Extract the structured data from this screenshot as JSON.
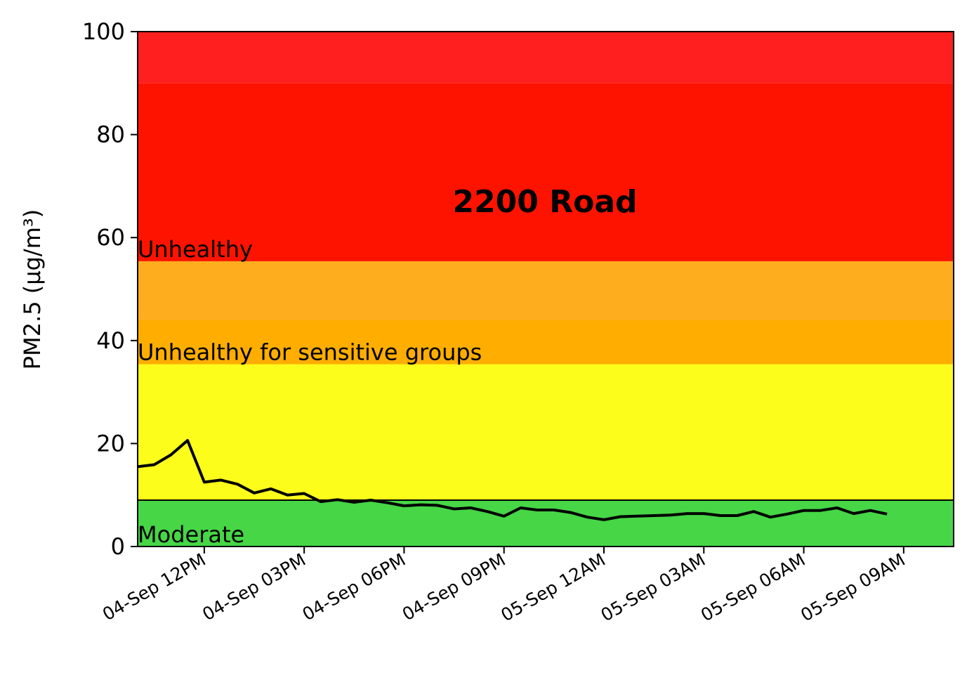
{
  "chart_data": {
    "type": "line",
    "title": "2200 Road",
    "xlabel": "",
    "ylabel": "PM2.5 (µg/m³)",
    "ylim": [
      0,
      100
    ],
    "yticks": [
      0,
      20,
      40,
      60,
      80,
      100
    ],
    "xlim": [
      "2024-09-04T10:00",
      "2024-09-05T10:30"
    ],
    "xticks": [
      {
        "t": "2024-09-04T12:00",
        "label": "04-Sep 12PM"
      },
      {
        "t": "2024-09-04T15:00",
        "label": "04-Sep 03PM"
      },
      {
        "t": "2024-09-04T18:00",
        "label": "04-Sep 06PM"
      },
      {
        "t": "2024-09-04T21:00",
        "label": "04-Sep 09PM"
      },
      {
        "t": "2024-09-05T00:00",
        "label": "05-Sep 12AM"
      },
      {
        "t": "2024-09-05T03:00",
        "label": "05-Sep 03AM"
      },
      {
        "t": "2024-09-05T06:00",
        "label": "05-Sep 06AM"
      },
      {
        "t": "2024-09-05T09:00",
        "label": "05-Sep 09AM"
      }
    ],
    "bands": [
      {
        "from": 0,
        "to": 9,
        "color": "#46d646",
        "label": "Moderate"
      },
      {
        "from": 9,
        "to": 35.4,
        "color": "#fdfd1b",
        "label": ""
      },
      {
        "from": 35.4,
        "to": 44,
        "color": "#ffae00",
        "label": "Unhealthy for sensitive groups"
      },
      {
        "from": 44,
        "to": 55.4,
        "color": "#fdad1d",
        "label": ""
      },
      {
        "from": 55.4,
        "to": 90,
        "color": "#fe1300",
        "label": "Unhealthy"
      },
      {
        "from": 90,
        "to": 100,
        "color": "#ff1f1f",
        "label": ""
      }
    ],
    "series": [
      {
        "color": "#000000",
        "x": [
          "2024-09-04T10:00",
          "2024-09-04T10:30",
          "2024-09-04T11:00",
          "2024-09-04T11:30",
          "2024-09-04T12:00",
          "2024-09-04T12:30",
          "2024-09-04T13:00",
          "2024-09-04T13:30",
          "2024-09-04T14:00",
          "2024-09-04T14:30",
          "2024-09-04T15:00",
          "2024-09-04T15:30",
          "2024-09-04T16:00",
          "2024-09-04T16:30",
          "2024-09-04T17:00",
          "2024-09-04T17:30",
          "2024-09-04T18:00",
          "2024-09-04T18:30",
          "2024-09-04T19:00",
          "2024-09-04T19:30",
          "2024-09-04T20:00",
          "2024-09-04T20:30",
          "2024-09-04T21:00",
          "2024-09-04T21:30",
          "2024-09-04T22:00",
          "2024-09-04T22:30",
          "2024-09-04T23:00",
          "2024-09-04T23:30",
          "2024-09-05T00:00",
          "2024-09-05T00:30",
          "2024-09-05T01:00",
          "2024-09-05T01:30",
          "2024-09-05T02:00",
          "2024-09-05T02:30",
          "2024-09-05T03:00",
          "2024-09-05T03:30",
          "2024-09-05T04:00",
          "2024-09-05T04:30",
          "2024-09-05T05:00",
          "2024-09-05T05:30",
          "2024-09-05T06:00",
          "2024-09-05T06:30",
          "2024-09-05T07:00",
          "2024-09-05T07:30",
          "2024-09-05T08:00",
          "2024-09-05T08:30"
        ],
        "values": [
          15.5,
          15.9,
          17.8,
          20.6,
          12.5,
          12.9,
          12.1,
          10.4,
          11.2,
          10.0,
          10.3,
          8.7,
          9.1,
          8.6,
          9.0,
          8.5,
          7.9,
          8.1,
          8.0,
          7.3,
          7.5,
          6.8,
          5.9,
          7.5,
          7.1,
          7.1,
          6.6,
          5.7,
          5.2,
          5.8,
          5.9,
          6.0,
          6.1,
          6.4,
          6.4,
          6.0,
          6.0,
          6.8,
          5.7,
          6.3,
          7.0,
          7.0,
          7.5,
          6.4,
          7.0,
          6.3
        ]
      }
    ],
    "grid": false,
    "legend": "none"
  }
}
